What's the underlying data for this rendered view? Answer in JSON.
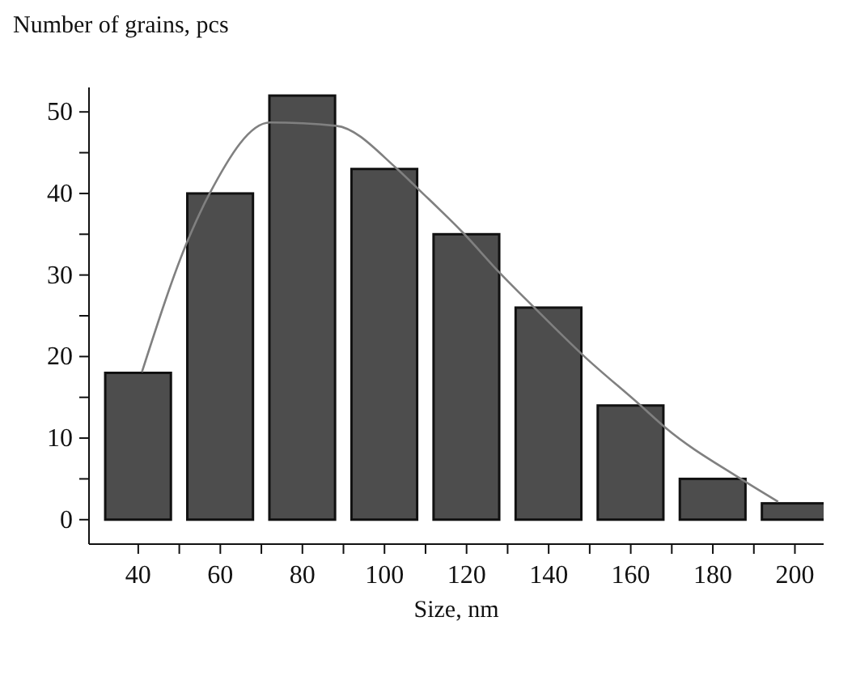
{
  "chart_data": {
    "type": "line",
    "xlabel": "Size, nm",
    "ylabel": "Number of grains, pcs",
    "x": [
      40,
      60,
      80,
      100,
      120,
      140,
      160,
      180,
      200
    ],
    "series": [
      {
        "type": "bar",
        "color": "#4d4d4d",
        "values": [
          18,
          40,
          52,
          43,
          35,
          26,
          14,
          5,
          2
        ]
      },
      {
        "color": "#808080",
        "x": [
          40.9,
          52.2,
          57.4,
          72.1,
          88.2,
          102.9,
          108.1,
          119.1,
          128.2,
          136.3,
          148.5,
          162.4,
          168.4,
          186.5,
          195.9
        ],
        "values": [
          18.1,
          34.4,
          40,
          48.7,
          48.3,
          43.1,
          40.6,
          35.2,
          30.2,
          26.1,
          20.1,
          14,
          11.3,
          5.1,
          2.2
        ]
      }
    ],
    "xlim": [
      28,
      207
    ],
    "xticks": [
      40,
      {
        "value": 50,
        "label": null
      },
      60,
      {
        "value": 70,
        "label": null
      },
      80,
      {
        "value": 90,
        "label": null
      },
      100,
      {
        "value": 110,
        "label": null
      },
      120,
      {
        "value": 130,
        "label": null
      },
      140,
      {
        "value": 150,
        "label": null
      },
      160,
      {
        "value": 170,
        "label": null
      },
      180,
      {
        "value": 190,
        "label": null
      },
      200
    ],
    "ylim": [
      -3,
      53
    ],
    "yticks": [
      0,
      {
        "value": 5,
        "label": null
      },
      10,
      {
        "value": 15,
        "label": null
      },
      20,
      {
        "value": 25,
        "label": null
      },
      30,
      {
        "value": 35,
        "label": null
      },
      40,
      {
        "value": 45,
        "label": null
      },
      50
    ],
    "grid": false,
    "legend": false,
    "marker": "none",
    "line_style": "solid"
  }
}
